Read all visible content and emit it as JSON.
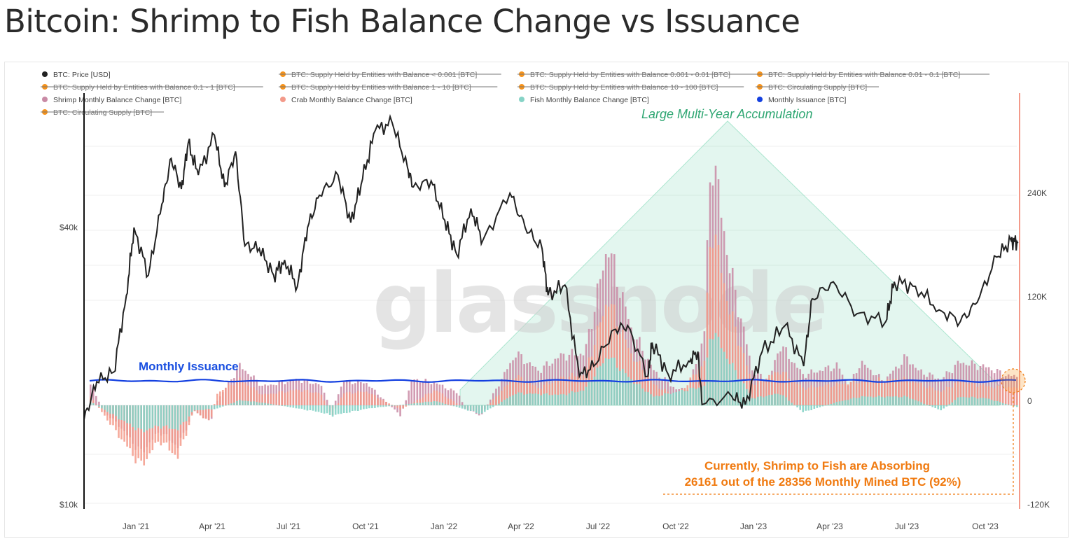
{
  "title": "Bitcoin: Shrimp to Fish Balance Change vs Issuance",
  "watermark": "glassnode",
  "legend": [
    {
      "label": "BTC: Price [USD]",
      "color": "#222222",
      "struck": false
    },
    {
      "label": "BTC: Supply Held by Entities with Balance < 0.001 [BTC]",
      "color": "#f7931a",
      "struck": true
    },
    {
      "label": "BTC: Supply Held by Entities with Balance 0.001 - 0.01 [BTC]",
      "color": "#f7931a",
      "struck": true
    },
    {
      "label": "BTC: Supply Held by Entities with Balance 0.01 - 0.1 [BTC]",
      "color": "#f7931a",
      "struck": true
    },
    {
      "label": "BTC: Supply Held by Entities with Balance 0.1 - 1 [BTC]",
      "color": "#f7931a",
      "struck": true
    },
    {
      "label": "BTC: Supply Held by Entities with Balance 1 - 10 [BTC]",
      "color": "#f7931a",
      "struck": true
    },
    {
      "label": "BTC: Supply Held by Entities with Balance 10 - 100 [BTC]",
      "color": "#f7931a",
      "struck": true
    },
    {
      "label": "BTC: Circulating Supply [BTC]",
      "color": "#f7931a",
      "struck": true
    },
    {
      "label": "Shrimp Monthly Balance Change [BTC]",
      "color": "#c98aa5",
      "struck": false
    },
    {
      "label": "Crab Monthly Balance Change [BTC]",
      "color": "#f39a8a",
      "struck": false
    },
    {
      "label": "Fish Monthly Balance Change [BTC]",
      "color": "#86d3c6",
      "struck": false
    },
    {
      "label": "Monthly Issuance [BTC]",
      "color": "#1440e0",
      "struck": false
    },
    {
      "label": "BTC: Circulating Supply [BTC]",
      "color": "#f7931a",
      "struck": true
    }
  ],
  "annotations": {
    "accumulation": "Large Multi-Year Accumulation",
    "issuance": "Monthly Issuance",
    "current_line1": "Currently, Shrimp to Fish are Absorbing",
    "current_line2": "26161 out of the 28356 Monthly Mined BTC (92%)"
  },
  "chart_data": {
    "type": "line",
    "x_ticks": [
      "Jan '21",
      "Apr '21",
      "Jul '21",
      "Oct '21",
      "Jan '22",
      "Apr '22",
      "Jul '22",
      "Oct '22",
      "Jan '23",
      "Apr '23",
      "Jul '23",
      "Oct '23"
    ],
    "y_left": {
      "scale": "log",
      "ticks": [
        "$40k",
        "$10k"
      ]
    },
    "y_right": {
      "ticks": [
        "240K",
        "120K",
        "0",
        "-120K"
      ],
      "range": [
        -120000,
        300000
      ]
    },
    "x_range": [
      "2020-11-10",
      "2023-11-20"
    ],
    "price_usd": [
      [
        "2020-11-10",
        15300
      ],
      [
        "2020-11-25",
        18500
      ],
      [
        "2020-12-15",
        19400
      ],
      [
        "2020-12-30",
        28500
      ],
      [
        "2021-01-08",
        40000
      ],
      [
        "2021-01-25",
        31500
      ],
      [
        "2021-02-10",
        45000
      ],
      [
        "2021-02-21",
        56500
      ],
      [
        "2021-03-05",
        48500
      ],
      [
        "2021-03-13",
        61000
      ],
      [
        "2021-03-25",
        52000
      ],
      [
        "2021-04-13",
        63500
      ],
      [
        "2021-04-25",
        49000
      ],
      [
        "2021-05-08",
        58500
      ],
      [
        "2021-05-19",
        36500
      ],
      [
        "2021-06-05",
        36000
      ],
      [
        "2021-06-22",
        31500
      ],
      [
        "2021-07-05",
        34000
      ],
      [
        "2021-07-20",
        29800
      ],
      [
        "2021-08-01",
        40000
      ],
      [
        "2021-08-15",
        47000
      ],
      [
        "2021-09-06",
        52000
      ],
      [
        "2021-09-21",
        41000
      ],
      [
        "2021-10-05",
        51000
      ],
      [
        "2021-10-20",
        65000
      ],
      [
        "2021-11-09",
        67500
      ],
      [
        "2021-11-27",
        54000
      ],
      [
        "2021-12-04",
        49000
      ],
      [
        "2021-12-25",
        50500
      ],
      [
        "2022-01-10",
        41500
      ],
      [
        "2022-01-24",
        35000
      ],
      [
        "2022-02-10",
        44000
      ],
      [
        "2022-02-24",
        37500
      ],
      [
        "2022-03-28",
        47500
      ],
      [
        "2022-04-15",
        40000
      ],
      [
        "2022-05-05",
        36000
      ],
      [
        "2022-05-12",
        28500
      ],
      [
        "2022-06-01",
        30000
      ],
      [
        "2022-06-18",
        19000
      ],
      [
        "2022-07-05",
        20000
      ],
      [
        "2022-07-29",
        24000
      ],
      [
        "2022-08-14",
        24500
      ],
      [
        "2022-09-07",
        19000
      ],
      [
        "2022-09-12",
        22500
      ],
      [
        "2022-10-01",
        19200
      ],
      [
        "2022-10-25",
        20500
      ],
      [
        "2022-11-05",
        21500
      ],
      [
        "2022-11-10",
        16500
      ],
      [
        "2022-12-15",
        17200
      ],
      [
        "2022-12-31",
        16500
      ],
      [
        "2023-01-20",
        21500
      ],
      [
        "2023-02-16",
        24500
      ],
      [
        "2023-03-10",
        20000
      ],
      [
        "2023-03-20",
        28000
      ],
      [
        "2023-04-14",
        30500
      ],
      [
        "2023-05-12",
        26000
      ],
      [
        "2023-06-15",
        25000
      ],
      [
        "2023-06-25",
        30500
      ],
      [
        "2023-07-20",
        29800
      ],
      [
        "2023-08-17",
        26500
      ],
      [
        "2023-09-11",
        25000
      ],
      [
        "2023-10-01",
        27500
      ],
      [
        "2023-10-24",
        34500
      ],
      [
        "2023-11-10",
        37500
      ],
      [
        "2023-11-18",
        37000
      ]
    ],
    "monthly_issuance_btc": 28356,
    "current_absorbed_btc": 26161,
    "series": [
      {
        "name": "Shrimp Monthly Balance Change [BTC]",
        "values": [
          [
            0,
            24000
          ],
          [
            0.06,
            -8000
          ],
          [
            0.12,
            -22000
          ],
          [
            0.22,
            -55000
          ],
          [
            0.3,
            -30000
          ],
          [
            0.38,
            -48000
          ],
          [
            0.45,
            -6000
          ],
          [
            0.52,
            -20000
          ],
          [
            0.55,
            5000
          ],
          [
            0.65,
            46000
          ],
          [
            0.75,
            22000
          ],
          [
            0.9,
            30000
          ],
          [
            1.0,
            24000
          ],
          [
            1.05,
            -5000
          ],
          [
            1.1,
            28000
          ],
          [
            1.2,
            26000
          ],
          [
            1.27,
            8000
          ],
          [
            1.35,
            -12000
          ],
          [
            1.4,
            30000
          ],
          [
            1.5,
            26000
          ],
          [
            1.6,
            14000
          ],
          [
            1.63,
            -4000
          ],
          [
            1.7,
            -12000
          ],
          [
            1.85,
            60000
          ],
          [
            1.95,
            40000
          ],
          [
            2.05,
            58000
          ],
          [
            2.15,
            60000
          ],
          [
            2.25,
            186000
          ],
          [
            2.35,
            90000
          ],
          [
            2.45,
            40000
          ],
          [
            2.55,
            18000
          ],
          [
            2.6,
            20000
          ],
          [
            2.67,
            84000
          ],
          [
            2.7,
            300000
          ],
          [
            2.78,
            160000
          ],
          [
            2.88,
            40000
          ],
          [
            2.95,
            28000
          ],
          [
            3.0,
            70000
          ],
          [
            3.1,
            35000
          ],
          [
            3.25,
            46000
          ],
          [
            3.3,
            22000
          ],
          [
            3.35,
            50000
          ],
          [
            3.45,
            28000
          ],
          [
            3.55,
            56000
          ],
          [
            3.6,
            40000
          ],
          [
            3.7,
            30000
          ],
          [
            3.78,
            50000
          ],
          [
            3.9,
            44000
          ],
          [
            3.98,
            35000
          ],
          [
            4.03,
            33000
          ]
        ]
      },
      {
        "name": "Crab Monthly Balance Change [BTC]",
        "values": [
          [
            0,
            10000
          ],
          [
            0.22,
            -70000
          ],
          [
            0.3,
            -40000
          ],
          [
            0.38,
            -60000
          ],
          [
            0.45,
            -6000
          ],
          [
            0.52,
            -20000
          ],
          [
            0.55,
            14000
          ],
          [
            0.65,
            30000
          ],
          [
            0.75,
            12000
          ],
          [
            0.9,
            18000
          ],
          [
            1.0,
            14000
          ],
          [
            1.05,
            -12000
          ],
          [
            1.1,
            14000
          ],
          [
            1.2,
            16000
          ],
          [
            1.35,
            -5000
          ],
          [
            1.5,
            18000
          ],
          [
            1.63,
            -4000
          ],
          [
            1.7,
            -8000
          ],
          [
            1.85,
            34000
          ],
          [
            1.95,
            20000
          ],
          [
            2.05,
            32000
          ],
          [
            2.15,
            36000
          ],
          [
            2.25,
            124000
          ],
          [
            2.35,
            60000
          ],
          [
            2.45,
            24000
          ],
          [
            2.55,
            10000
          ],
          [
            2.67,
            50000
          ],
          [
            2.7,
            215000
          ],
          [
            2.78,
            110000
          ],
          [
            2.88,
            24000
          ],
          [
            3.0,
            40000
          ],
          [
            3.1,
            20000
          ],
          [
            3.25,
            24000
          ],
          [
            3.35,
            28000
          ],
          [
            3.55,
            30000
          ],
          [
            3.7,
            16000
          ],
          [
            3.78,
            28000
          ],
          [
            3.9,
            22000
          ],
          [
            4.03,
            20000
          ]
        ]
      },
      {
        "name": "Fish Monthly Balance Change [BTC]",
        "values": [
          [
            0,
            4000
          ],
          [
            0.22,
            -30000
          ],
          [
            0.3,
            -24000
          ],
          [
            0.38,
            -28000
          ],
          [
            0.45,
            -6000
          ],
          [
            0.55,
            -4000
          ],
          [
            0.65,
            6000
          ],
          [
            0.75,
            3000
          ],
          [
            1.0,
            -8000
          ],
          [
            1.05,
            -12000
          ],
          [
            1.2,
            -4000
          ],
          [
            1.5,
            5000
          ],
          [
            1.7,
            -10000
          ],
          [
            1.85,
            14000
          ],
          [
            2.05,
            12000
          ],
          [
            2.15,
            18000
          ],
          [
            2.25,
            58000
          ],
          [
            2.35,
            30000
          ],
          [
            2.45,
            10000
          ],
          [
            2.67,
            22000
          ],
          [
            2.7,
            90000
          ],
          [
            2.78,
            50000
          ],
          [
            2.88,
            8000
          ],
          [
            3.0,
            14000
          ],
          [
            3.1,
            -8000
          ],
          [
            3.25,
            4000
          ],
          [
            3.35,
            10000
          ],
          [
            3.55,
            10000
          ],
          [
            3.7,
            -6000
          ],
          [
            3.78,
            10000
          ],
          [
            3.9,
            8000
          ],
          [
            4.03,
            -2000
          ]
        ]
      }
    ]
  }
}
